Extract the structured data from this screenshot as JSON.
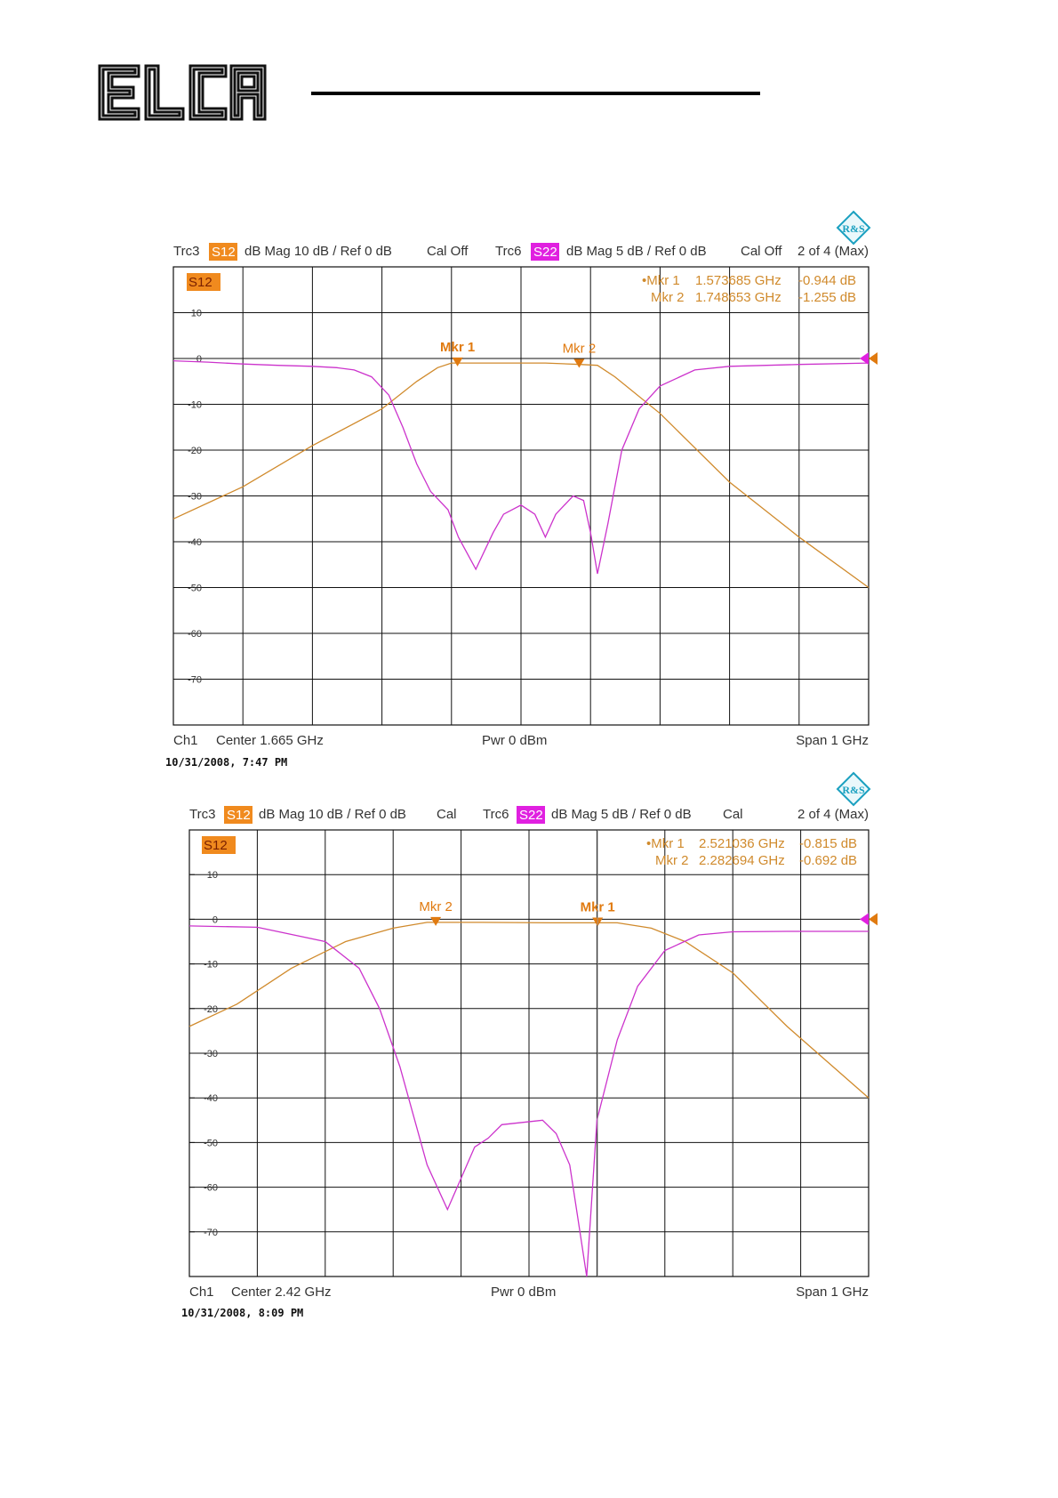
{
  "page": {
    "logo_text": "ELCA"
  },
  "colors": {
    "s12": "#d08a2c",
    "s22": "#cc33cc",
    "s12_badge": "#f08a1e",
    "s22_badge": "#e020e0",
    "marker": "#e07a10"
  },
  "chart_data": [
    {
      "type": "line",
      "header": {
        "trc_a": "Trc3",
        "badge_a": "S12",
        "scale_a": "dB Mag   10 dB /   Ref 0 dB",
        "cal_a": "Cal Off",
        "trc_b": "Trc6",
        "badge_b": "S22",
        "scale_b": "dB Mag   5 dB /   Ref 0 dB",
        "cal_b": "Cal Off",
        "page": "2 of 4 (Max)"
      },
      "trace_label": "S12",
      "markers_text": [
        {
          "label": "•Mkr 1",
          "freq": "1.573685 GHz",
          "value": "-0.944 dB"
        },
        {
          "label": "Mkr 2",
          "freq": "1.748653 GHz",
          "value": "-1.255 dB"
        }
      ],
      "markers": [
        {
          "name": "Mkr 1",
          "x": 1.573685,
          "y": -0.944,
          "active": true
        },
        {
          "name": "Mkr 2",
          "x": 1.748653,
          "y": -1.255,
          "active": false
        }
      ],
      "yticks": [
        10,
        0,
        -10,
        -20,
        -30,
        -40,
        -50,
        -60,
        -70
      ],
      "ylim": [
        20,
        -80
      ],
      "xlim": [
        1.165,
        2.165
      ],
      "footer": {
        "ch": "Ch1",
        "center": "Center   1.665 GHz",
        "pwr": "Pwr   0 dBm",
        "span": "Span   1 GHz"
      },
      "timestamp": "10/31/2008, 7:47 PM",
      "series": [
        {
          "name": "S12",
          "color": "#d08a2c",
          "x": [
            1.165,
            1.265,
            1.365,
            1.465,
            1.515,
            1.545,
            1.565,
            1.6,
            1.65,
            1.7,
            1.75,
            1.775,
            1.8,
            1.865,
            1.965,
            2.065,
            2.165
          ],
          "y": [
            -35,
            -28,
            -19,
            -11,
            -5,
            -2,
            -1,
            -1,
            -1,
            -1,
            -1.3,
            -1.5,
            -4,
            -12,
            -27,
            -39,
            -50
          ]
        },
        {
          "name": "S22",
          "color": "#cc33cc",
          "x": [
            1.165,
            1.215,
            1.265,
            1.315,
            1.365,
            1.4,
            1.425,
            1.45,
            1.475,
            1.495,
            1.515,
            1.535,
            1.56,
            1.575,
            1.6,
            1.625,
            1.64,
            1.665,
            1.685,
            1.7,
            1.715,
            1.74,
            1.755,
            1.765,
            1.775,
            1.79,
            1.81,
            1.835,
            1.865,
            1.915,
            1.965,
            2.065,
            2.165
          ],
          "y": [
            -0.5,
            -0.8,
            -1.2,
            -1.5,
            -1.7,
            -2,
            -2.5,
            -4,
            -8,
            -15,
            -23,
            -29,
            -33,
            -39,
            -46,
            -38,
            -34,
            -32,
            -34,
            -39,
            -34,
            -30,
            -31,
            -38,
            -47,
            -36,
            -20,
            -11,
            -6,
            -2.5,
            -1.7,
            -1.3,
            -1
          ]
        }
      ]
    },
    {
      "type": "line",
      "header": {
        "trc_a": "Trc3",
        "badge_a": "S12",
        "scale_a": "dB Mag   10 dB /   Ref 0 dB",
        "cal_a": "Cal",
        "trc_b": "Trc6",
        "badge_b": "S22",
        "scale_b": "dB Mag   5 dB /   Ref 0 dB",
        "cal_b": "Cal",
        "page": "2 of 4 (Max)"
      },
      "trace_label": "S12",
      "markers_text": [
        {
          "label": "•Mkr 1",
          "freq": "2.521036 GHz",
          "value": "-0.815 dB"
        },
        {
          "label": "Mkr 2",
          "freq": "2.282694 GHz",
          "value": "-0.692 dB"
        }
      ],
      "markers": [
        {
          "name": "Mkr 1",
          "x": 2.521036,
          "y": -0.815,
          "active": true
        },
        {
          "name": "Mkr 2",
          "x": 2.282694,
          "y": -0.692,
          "active": false
        }
      ],
      "yticks": [
        10,
        0,
        -10,
        -20,
        -30,
        -40,
        -50,
        -60,
        -70
      ],
      "ylim": [
        20,
        -80
      ],
      "xlim": [
        1.92,
        2.92
      ],
      "footer": {
        "ch": "Ch1",
        "center": "Center   2.42 GHz",
        "pwr": "Pwr   0 dBm",
        "span": "Span   1 GHz"
      },
      "timestamp": "10/31/2008, 8:09 PM",
      "series": [
        {
          "name": "S12",
          "color": "#d08a2c",
          "x": [
            1.92,
            1.99,
            2.07,
            2.15,
            2.22,
            2.27,
            2.35,
            2.45,
            2.55,
            2.6,
            2.65,
            2.72,
            2.8,
            2.92
          ],
          "y": [
            -24,
            -19,
            -11,
            -5,
            -2,
            -0.7,
            -0.7,
            -0.8,
            -0.8,
            -2,
            -5,
            -12,
            -24,
            -40
          ]
        },
        {
          "name": "S22",
          "color": "#cc33cc",
          "x": [
            1.92,
            2.02,
            2.12,
            2.17,
            2.2,
            2.23,
            2.27,
            2.3,
            2.32,
            2.34,
            2.36,
            2.38,
            2.41,
            2.44,
            2.46,
            2.48,
            2.495,
            2.505,
            2.52,
            2.55,
            2.58,
            2.62,
            2.67,
            2.72,
            2.8,
            2.92
          ],
          "y": [
            -1.5,
            -1.8,
            -5,
            -11,
            -20,
            -33,
            -55,
            -65,
            -58,
            -51,
            -49,
            -46,
            -45.5,
            -45,
            -48,
            -55,
            -70,
            -80,
            -45,
            -27,
            -15,
            -7,
            -3.5,
            -2.8,
            -2.7,
            -2.7
          ]
        }
      ]
    }
  ]
}
